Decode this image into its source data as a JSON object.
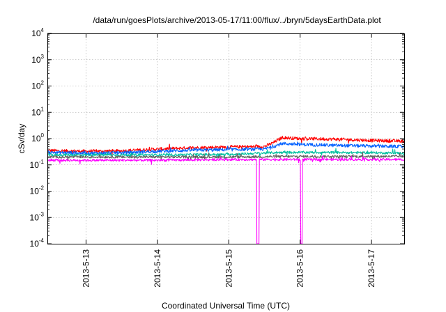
{
  "chart_data": {
    "type": "line",
    "title": "/data/run/goesPlots/archive/2013-05-17/11:00/flux/../bryn/5daysEarthData.plot",
    "xlabel": "Coordinated Universal Time (UTC)",
    "ylabel": "cSv/day",
    "yscale": "log",
    "ylim": [
      0.0001,
      10000
    ],
    "y_ticks": [
      {
        "base": "10",
        "exp": "-4"
      },
      {
        "base": "10",
        "exp": "-3"
      },
      {
        "base": "10",
        "exp": "-2"
      },
      {
        "base": "10",
        "exp": "-1"
      },
      {
        "base": "10",
        "exp": "0"
      },
      {
        "base": "10",
        "exp": "1"
      },
      {
        "base": "10",
        "exp": "2"
      },
      {
        "base": "10",
        "exp": "3"
      },
      {
        "base": "10",
        "exp": "4"
      }
    ],
    "xlim": [
      "2013-05-12 11:00",
      "2013-05-17 11:00"
    ],
    "x_ticks": [
      "2013-5-13",
      "2013-5-14",
      "2013-5-15",
      "2013-5-16",
      "2013-5-17"
    ],
    "grid": true,
    "series": [
      {
        "color": "#ff0000",
        "x": [
          "2013-05-12 12:00",
          "2013-05-13 00:00",
          "2013-05-13 12:00",
          "2013-05-14 00:00",
          "2013-05-14 12:00",
          "2013-05-15 00:00",
          "2013-05-15 12:00",
          "2013-05-15 15:00",
          "2013-05-15 18:00",
          "2013-05-16 00:00",
          "2013-05-16 12:00",
          "2013-05-17 00:00",
          "2013-05-17 11:00"
        ],
        "values": [
          0.35,
          0.33,
          0.34,
          0.4,
          0.45,
          0.48,
          0.5,
          0.7,
          1.1,
          1.0,
          0.95,
          0.85,
          0.8
        ]
      },
      {
        "color": "#0060ff",
        "x": [
          "2013-05-12 12:00",
          "2013-05-13 00:00",
          "2013-05-13 12:00",
          "2013-05-14 00:00",
          "2013-05-14 12:00",
          "2013-05-15 00:00",
          "2013-05-15 12:00",
          "2013-05-15 15:00",
          "2013-05-15 18:00",
          "2013-05-16 00:00",
          "2013-05-16 12:00",
          "2013-05-17 00:00",
          "2013-05-17 11:00"
        ],
        "values": [
          0.3,
          0.28,
          0.29,
          0.33,
          0.36,
          0.38,
          0.4,
          0.5,
          0.65,
          0.6,
          0.55,
          0.52,
          0.5
        ]
      },
      {
        "color": "#00c0a0",
        "x": [
          "2013-05-12 12:00",
          "2013-05-13 00:00",
          "2013-05-14 00:00",
          "2013-05-15 00:00",
          "2013-05-15 18:00",
          "2013-05-16 00:00",
          "2013-05-17 00:00",
          "2013-05-17 11:00"
        ],
        "values": [
          0.24,
          0.24,
          0.24,
          0.25,
          0.3,
          0.3,
          0.29,
          0.28
        ]
      },
      {
        "color": "#606060",
        "x": [
          "2013-05-12 12:00",
          "2013-05-13 00:00",
          "2013-05-14 00:00",
          "2013-05-15 00:00",
          "2013-05-16 00:00",
          "2013-05-17 00:00",
          "2013-05-17 11:00"
        ],
        "values": [
          0.2,
          0.2,
          0.2,
          0.2,
          0.21,
          0.21,
          0.21
        ]
      },
      {
        "color": "#ff00ff",
        "x": [
          "2013-05-12 12:00",
          "2013-05-13 00:00",
          "2013-05-14 00:00",
          "2013-05-15 00:00",
          "2013-05-15 09:00",
          "2013-05-15 09:50",
          "2013-05-15 10:40",
          "2013-05-16 00:00",
          "2013-05-16 00:20",
          "2013-05-16 01:00",
          "2013-05-17 00:00",
          "2013-05-17 11:00"
        ],
        "values": [
          0.15,
          0.15,
          0.15,
          0.16,
          0.16,
          0.0001,
          0.16,
          0.16,
          0.0001,
          0.16,
          0.16,
          0.16
        ]
      }
    ]
  }
}
